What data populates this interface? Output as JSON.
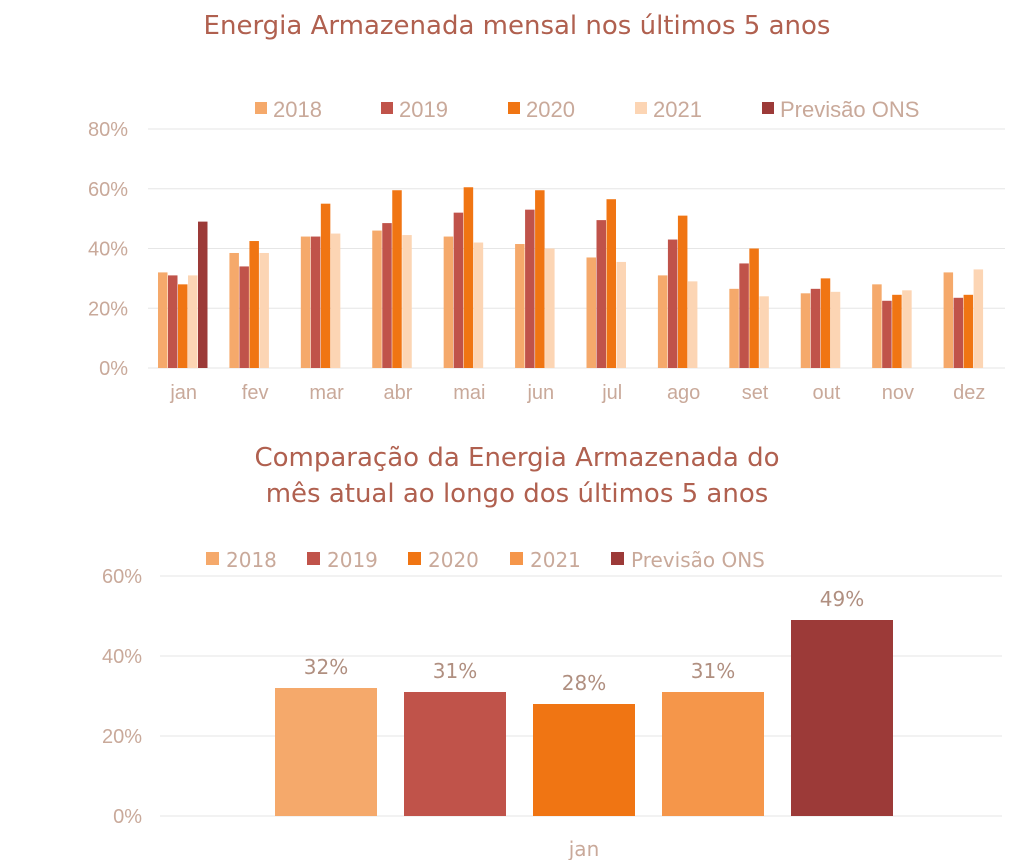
{
  "chart_data": [
    {
      "type": "bar",
      "title": "Energia Armazenada mensal nos últimos 5 anos",
      "xlabel": "",
      "ylabel": "",
      "ylim": [
        0,
        80
      ],
      "yticks": [
        "0%",
        "20%",
        "40%",
        "60%",
        "80%"
      ],
      "categories": [
        "jan",
        "fev",
        "mar",
        "abr",
        "mai",
        "jun",
        "jul",
        "ago",
        "set",
        "out",
        "nov",
        "dez"
      ],
      "series": [
        {
          "name": "2018",
          "color": "#f5a96b",
          "values": [
            32,
            38.5,
            44,
            46,
            44,
            41.5,
            37,
            31,
            26.5,
            25,
            28,
            32
          ]
        },
        {
          "name": "2019",
          "color": "#c0534a",
          "values": [
            31,
            34,
            44,
            48.5,
            52,
            53,
            49.5,
            43,
            35,
            26.5,
            22.5,
            23.5
          ]
        },
        {
          "name": "2020",
          "color": "#f07513",
          "values": [
            28,
            42.5,
            55,
            59.5,
            60.5,
            59.5,
            56.5,
            51,
            40,
            30,
            24.5,
            24.5
          ]
        },
        {
          "name": "2021",
          "color": "#fcd5b4",
          "values": [
            31,
            38.5,
            45,
            44.5,
            42,
            40,
            35.5,
            29,
            24,
            25.5,
            26,
            33
          ]
        },
        {
          "name": "Previsão ONS",
          "color": "#9c3a38",
          "values": [
            49,
            null,
            null,
            null,
            null,
            null,
            null,
            null,
            null,
            null,
            null,
            null
          ]
        }
      ],
      "legend": "top"
    },
    {
      "type": "bar",
      "title_lines": [
        "Comparação da Energia Armazenada do",
        "mês atual ao longo dos últimos 5 anos"
      ],
      "xlabel": "",
      "ylabel": "",
      "ylim": [
        0,
        60
      ],
      "yticks": [
        "0%",
        "20%",
        "40%",
        "60%"
      ],
      "categories": [
        "jan"
      ],
      "series": [
        {
          "name": "2018",
          "color": "#f5a96b",
          "value": 32,
          "label": "32%"
        },
        {
          "name": "2019",
          "color": "#c0534a",
          "value": 31,
          "label": "31%"
        },
        {
          "name": "2020",
          "color": "#f07513",
          "value": 28,
          "label": "28%"
        },
        {
          "name": "2021",
          "color": "#f5964a",
          "value": 31,
          "label": "31%"
        },
        {
          "name": "Previsão ONS",
          "color": "#9c3a38",
          "value": 49,
          "label": "49%"
        }
      ],
      "legend": "top"
    }
  ]
}
